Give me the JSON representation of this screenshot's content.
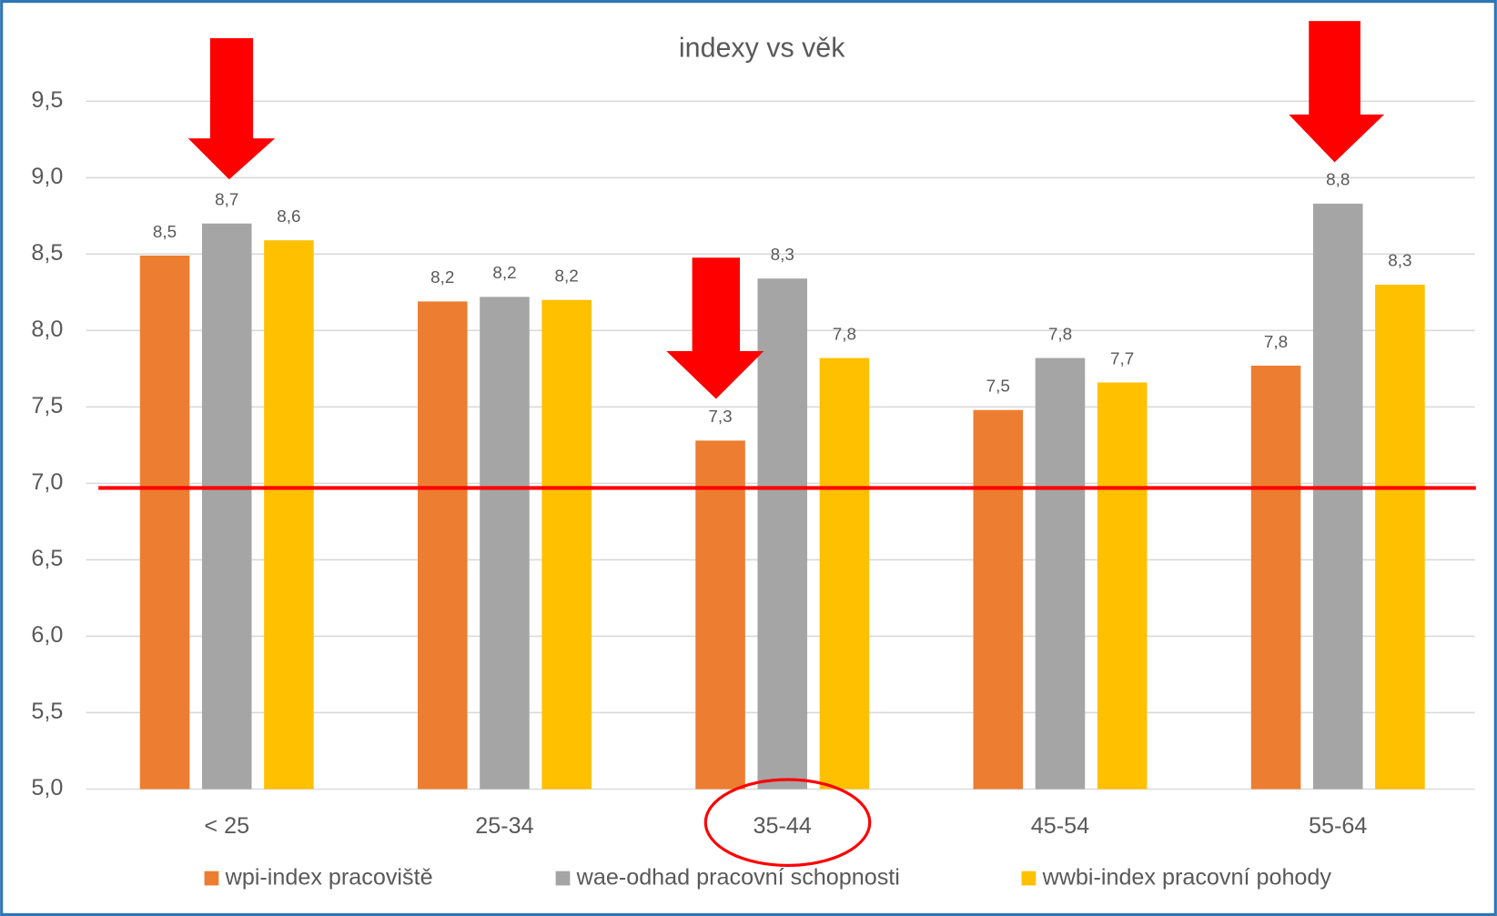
{
  "chart_data": {
    "type": "bar",
    "title": "indexy  vs  věk",
    "categories": [
      "< 25",
      "25-34",
      "35-44",
      "45-54",
      "55-64"
    ],
    "series": [
      {
        "name": "wpi-index pracoviště",
        "color": "#ED7D31",
        "values": [
          8.49,
          8.19,
          7.28,
          7.48,
          7.77
        ],
        "value_labels": [
          "8,5",
          "8,2",
          "7,3",
          "7,5",
          "7,8"
        ]
      },
      {
        "name": "wae-odhad pracovní schopnosti",
        "color": "#A5A5A5",
        "values": [
          8.7,
          8.22,
          8.34,
          7.82,
          8.83
        ],
        "value_labels": [
          "8,7",
          "8,2",
          "8,3",
          "7,8",
          "8,8"
        ]
      },
      {
        "name": "wwbi-index pracovní pohody",
        "color": "#FFC000",
        "values": [
          8.59,
          8.2,
          7.82,
          7.66,
          8.3
        ],
        "value_labels": [
          "8,6",
          "8,2",
          "7,8",
          "7,7",
          "8,3"
        ]
      }
    ],
    "ylim": [
      5,
      9.9
    ],
    "yticks": [
      {
        "value": 5,
        "label": "5,0"
      },
      {
        "value": 5.5,
        "label": "5,5"
      },
      {
        "value": 6,
        "label": "6,0"
      },
      {
        "value": 6.5,
        "label": "6,5"
      },
      {
        "value": 7,
        "label": "7,0"
      },
      {
        "value": 7.5,
        "label": "7,5"
      },
      {
        "value": 8,
        "label": "8,0"
      },
      {
        "value": 8.5,
        "label": "8,5"
      },
      {
        "value": 9,
        "label": "9,0"
      },
      {
        "value": 9.5,
        "label": "9,5"
      }
    ],
    "grid": true,
    "legend": "bottom",
    "reference_line": {
      "value": 6.97,
      "color": "#FF0000"
    }
  }
}
